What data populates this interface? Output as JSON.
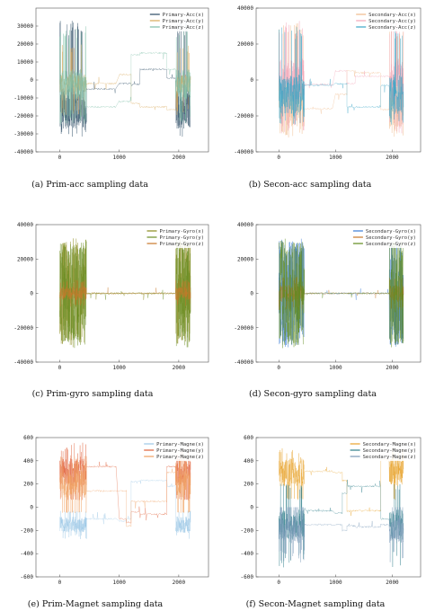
{
  "panels": [
    {
      "caption": "(a) Prim-acc sampling data",
      "chart_data": {
        "type": "line",
        "xlim": [
          -400,
          2500
        ],
        "ylim": [
          -40000,
          40000
        ],
        "xticks": [
          0,
          1000,
          2000
        ],
        "yticks": [
          -40000,
          -30000,
          -20000,
          -10000,
          0,
          10000,
          20000,
          30000
        ],
        "legend_position": "top-right",
        "series": [
          {
            "name": "Primary-Acc(x)",
            "color": "#2a4a63",
            "noisy_base": -16000,
            "noisy_amp": 11000,
            "peak": 33000,
            "trough": -32000,
            "levels": [
              [
                450,
                950,
                -5000
              ],
              [
                1000,
                1200,
                -2000
              ],
              [
                1200,
                1350,
                -2500
              ],
              [
                1350,
                1800,
                6000
              ],
              [
                1800,
                1950,
                1000
              ]
            ]
          },
          {
            "name": "Primary-Acc(y)",
            "color": "#d9a95b",
            "noisy_base": -2000,
            "noisy_amp": 5000,
            "peak": 20000,
            "trough": -20000,
            "levels": [
              [
                450,
                950,
                -2000
              ],
              [
                1000,
                1200,
                3000
              ],
              [
                1200,
                1350,
                -13000
              ],
              [
                1350,
                1800,
                -15000
              ],
              [
                1800,
                1950,
                -16500
              ]
            ]
          },
          {
            "name": "Primary-Acc(z)",
            "color": "#7fbfa8",
            "noisy_base": -3000,
            "noisy_amp": 9000,
            "peak": 30000,
            "trough": -25000,
            "levels": [
              [
                450,
                950,
                -15000
              ],
              [
                1000,
                1200,
                -12000
              ],
              [
                1200,
                1350,
                14000
              ],
              [
                1350,
                1800,
                15000
              ],
              [
                1800,
                1950,
                6000
              ]
            ]
          }
        ]
      }
    },
    {
      "caption": "(b) Secon-acc sampling data",
      "chart_data": {
        "type": "line",
        "xlim": [
          -400,
          2500
        ],
        "ylim": [
          -40000,
          40000
        ],
        "xticks": [
          0,
          1000,
          2000
        ],
        "yticks": [
          -40000,
          -20000,
          0,
          20000,
          40000
        ],
        "legend_position": "top-right",
        "series": [
          {
            "name": "Secondary-Acc(x)",
            "color": "#f0b98a",
            "noisy_base": -12000,
            "noisy_amp": 14000,
            "peak": 32000,
            "trough": -32000,
            "levels": [
              [
                450,
                950,
                -16000
              ],
              [
                1000,
                1200,
                -8000
              ],
              [
                1200,
                1350,
                5000
              ],
              [
                1350,
                1800,
                4000
              ],
              [
                1800,
                1950,
                -16500
              ]
            ]
          },
          {
            "name": "Secondary-Acc(y)",
            "color": "#f4a6b8",
            "noisy_base": 0,
            "noisy_amp": 12000,
            "peak": 33000,
            "trough": -30000,
            "levels": [
              [
                450,
                950,
                -2500
              ],
              [
                1000,
                1200,
                5000
              ],
              [
                1200,
                1350,
                -2000
              ],
              [
                1350,
                1800,
                2000
              ],
              [
                1800,
                1950,
                2000
              ]
            ]
          },
          {
            "name": "Secondary-Acc(z)",
            "color": "#3aa6c8",
            "noisy_base": -8000,
            "noisy_amp": 11000,
            "peak": 30000,
            "trough": -25000,
            "levels": [
              [
                450,
                950,
                -3000
              ],
              [
                1000,
                1200,
                -2000
              ],
              [
                1200,
                1350,
                -15000
              ],
              [
                1350,
                1800,
                -15000
              ],
              [
                1800,
                1950,
                -3000
              ]
            ]
          }
        ]
      }
    },
    {
      "caption": "(c) Prim-gyro sampling data",
      "chart_data": {
        "type": "line",
        "xlim": [
          -400,
          2500
        ],
        "ylim": [
          -40000,
          40000
        ],
        "xticks": [
          0,
          1000,
          2000
        ],
        "yticks": [
          -40000,
          -20000,
          0,
          20000,
          40000
        ],
        "legend_position": "top-right",
        "series": [
          {
            "name": "Primary-Gyro(x)",
            "color": "#8a8a1c",
            "noisy_base": 0,
            "noisy_amp": 30000,
            "peak": 32000,
            "trough": -32000,
            "levels": [
              [
                450,
                1950,
                0
              ]
            ]
          },
          {
            "name": "Primary-Gyro(y)",
            "color": "#6b8e23",
            "noisy_base": 0,
            "noisy_amp": 28000,
            "peak": 32000,
            "trough": -32000,
            "levels": [
              [
                450,
                1950,
                0
              ]
            ]
          },
          {
            "name": "Primary-Gyro(z)",
            "color": "#c8782a",
            "noisy_base": 0,
            "noisy_amp": 4000,
            "peak": 8000,
            "trough": -8000,
            "levels": [
              [
                450,
                1950,
                0
              ]
            ]
          }
        ]
      }
    },
    {
      "caption": "(d) Secon-gyro sampling data",
      "chart_data": {
        "type": "line",
        "xlim": [
          -400,
          2500
        ],
        "ylim": [
          -40000,
          40000
        ],
        "xticks": [
          0,
          1000,
          2000
        ],
        "yticks": [
          -40000,
          -20000,
          0,
          20000,
          40000
        ],
        "legend_position": "top-right",
        "series": [
          {
            "name": "Secondary-Gyro(x)",
            "color": "#3a7bd5",
            "noisy_base": 0,
            "noisy_amp": 30000,
            "peak": 32000,
            "trough": -32000,
            "levels": [
              [
                450,
                1950,
                0
              ]
            ]
          },
          {
            "name": "Secondary-Gyro(y)",
            "color": "#c8782a",
            "noisy_base": 0,
            "noisy_amp": 5000,
            "peak": 10000,
            "trough": -10000,
            "levels": [
              [
                450,
                1950,
                0
              ]
            ]
          },
          {
            "name": "Secondary-Gyro(z)",
            "color": "#5f8a1c",
            "noisy_base": 0,
            "noisy_amp": 30000,
            "peak": 32000,
            "trough": -32000,
            "levels": [
              [
                450,
                1950,
                0
              ]
            ]
          }
        ]
      }
    },
    {
      "caption": "(e) Prim-Magnet sampling data",
      "chart_data": {
        "type": "line",
        "xlim": [
          -400,
          2500
        ],
        "ylim": [
          -600,
          600
        ],
        "xticks": [
          0,
          1000,
          2000
        ],
        "yticks": [
          -600,
          -400,
          -200,
          0,
          200,
          400,
          600
        ],
        "legend_position": "top-right",
        "series": [
          {
            "name": "Primary-Magne(x)",
            "color": "#9cc7e6",
            "noisy_base": -150,
            "noisy_amp": 70,
            "peak": -40,
            "trough": -280,
            "levels": [
              [
                450,
                950,
                -100
              ],
              [
                1000,
                1120,
                -120
              ],
              [
                1120,
                1200,
                -100
              ],
              [
                1200,
                1350,
                220
              ],
              [
                1350,
                1800,
                230
              ],
              [
                1800,
                1950,
                180
              ]
            ]
          },
          {
            "name": "Primary-Magne(y)",
            "color": "#e0603a",
            "noisy_base": 300,
            "noisy_amp": 120,
            "peak": 560,
            "trough": 80,
            "levels": [
              [
                450,
                950,
                350
              ],
              [
                1000,
                1120,
                -100
              ],
              [
                1120,
                1200,
                -130
              ],
              [
                1200,
                1350,
                -40
              ],
              [
                1350,
                1800,
                -60
              ],
              [
                1800,
                1950,
                350
              ]
            ]
          },
          {
            "name": "Primary-Magne(z)",
            "color": "#f0a060",
            "noisy_base": 200,
            "noisy_amp": 120,
            "peak": 450,
            "trough": -50,
            "levels": [
              [
                450,
                950,
                140
              ],
              [
                1000,
                1120,
                140
              ],
              [
                1120,
                1200,
                -160
              ],
              [
                1200,
                1350,
                50
              ],
              [
                1350,
                1800,
                50
              ],
              [
                1800,
                1950,
                300
              ]
            ]
          }
        ]
      }
    },
    {
      "caption": "(f) Secon-Magnet sampling data",
      "chart_data": {
        "type": "line",
        "xlim": [
          -400,
          2500
        ],
        "ylim": [
          -600,
          600
        ],
        "xticks": [
          0,
          1000,
          2000
        ],
        "yticks": [
          -600,
          -400,
          -200,
          0,
          200,
          400,
          600
        ],
        "legend_position": "top-right",
        "series": [
          {
            "name": "Secondary-Magne(x)",
            "color": "#e8a22a",
            "noisy_base": 300,
            "noisy_amp": 120,
            "peak": 520,
            "trough": 80,
            "levels": [
              [
                450,
                950,
                310
              ],
              [
                1000,
                1120,
                300
              ],
              [
                1120,
                1200,
                230
              ],
              [
                1200,
                1350,
                -30
              ],
              [
                1350,
                1800,
                -30
              ],
              [
                1800,
                1950,
                410
              ]
            ]
          },
          {
            "name": "Secondary-Magne(y)",
            "color": "#2f7f8a",
            "noisy_base": -150,
            "noisy_amp": 130,
            "peak": 200,
            "trough": -520,
            "levels": [
              [
                450,
                950,
                -30
              ],
              [
                1000,
                1120,
                -50
              ],
              [
                1120,
                1200,
                120
              ],
              [
                1200,
                1350,
                180
              ],
              [
                1350,
                1800,
                180
              ],
              [
                1800,
                1950,
                -100
              ]
            ]
          },
          {
            "name": "Secondary-Magne(z)",
            "color": "#7a9ab8",
            "noisy_base": -200,
            "noisy_amp": 110,
            "peak": 0,
            "trough": -480,
            "levels": [
              [
                450,
                950,
                -150
              ],
              [
                1000,
                1120,
                -150
              ],
              [
                1120,
                1200,
                -200
              ],
              [
                1200,
                1350,
                -160
              ],
              [
                1350,
                1800,
                -170
              ],
              [
                1800,
                1950,
                -150
              ]
            ]
          }
        ]
      }
    }
  ]
}
